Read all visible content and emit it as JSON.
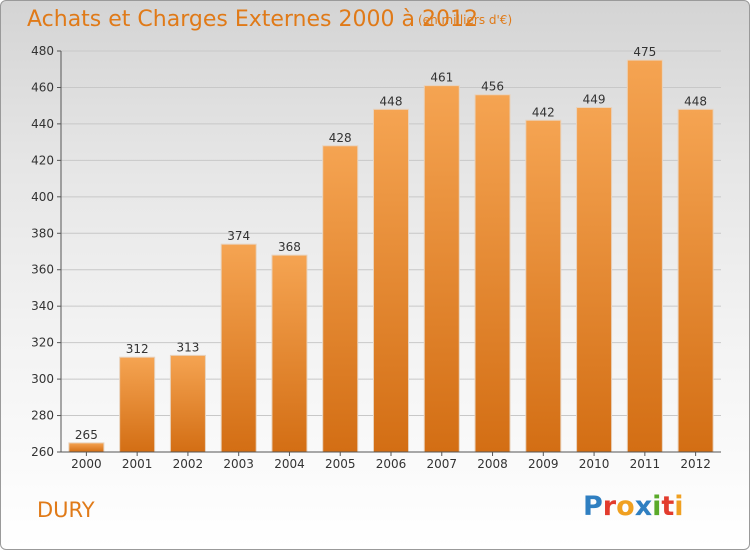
{
  "chart_data": {
    "type": "bar",
    "title": "Achats et Charges Externes 2000 à 2012",
    "subtitle": "(en milliers d'€)",
    "categories": [
      "2000",
      "2001",
      "2002",
      "2003",
      "2004",
      "2005",
      "2006",
      "2007",
      "2008",
      "2009",
      "2010",
      "2011",
      "2012"
    ],
    "values": [
      265,
      312,
      313,
      374,
      368,
      428,
      448,
      461,
      456,
      442,
      449,
      475,
      448
    ],
    "ylim": [
      260,
      480
    ],
    "yticks": [
      260,
      280,
      300,
      320,
      340,
      360,
      380,
      400,
      420,
      440,
      460,
      480
    ],
    "grid": true,
    "bar_color": "#f0903a"
  },
  "commune": "DURY",
  "logo": {
    "letters": [
      "P",
      "r",
      "o",
      "x",
      "i",
      "t",
      "i"
    ],
    "colors": [
      "#2f7fc1",
      "#e23b2d",
      "#f0a020",
      "#2f7fc1",
      "#5aaa2a",
      "#e23b2d",
      "#f0a020"
    ]
  }
}
